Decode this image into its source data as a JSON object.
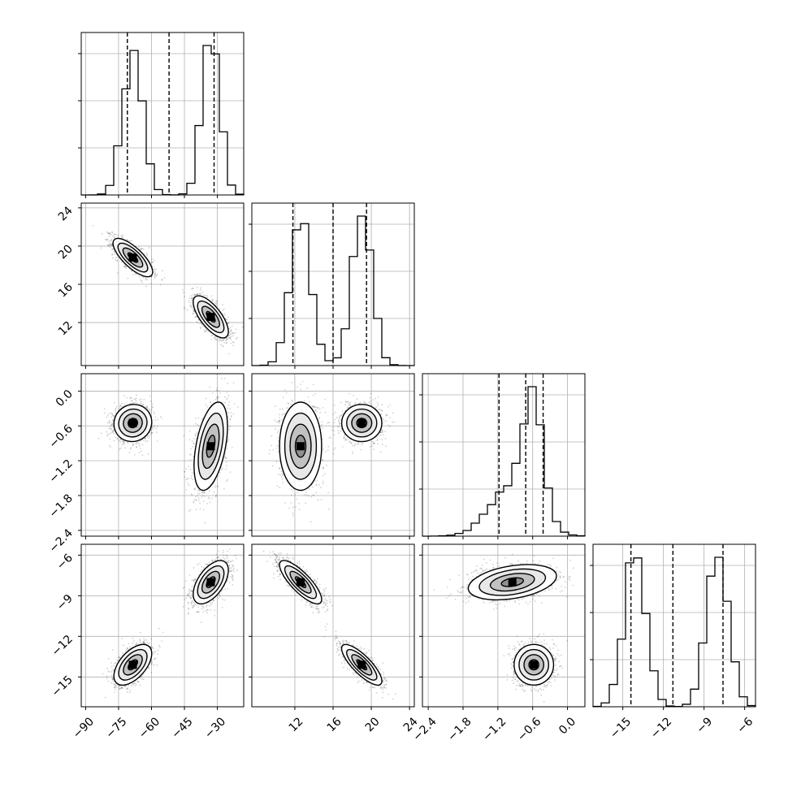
{
  "chart_data": {
    "type": "corner",
    "grid": true,
    "legend": "none",
    "parameters": [
      {
        "range": [
          -92,
          -18
        ],
        "ticks": [
          -90,
          -75,
          -60,
          -45,
          -30
        ],
        "tick_labels": [
          "−90",
          "−75",
          "−60",
          "−45",
          "−30"
        ],
        "quantiles": [
          -71.0,
          -52.0,
          -31.5
        ],
        "modes": [
          {
            "center": -68.5,
            "sd": 4.5,
            "weight": 0.5
          },
          {
            "center": -33.0,
            "sd": 4.0,
            "weight": 0.5
          }
        ],
        "hist_bins": 20
      },
      {
        "range": [
          7.5,
          24.5
        ],
        "ticks": [
          12,
          16,
          20,
          24
        ],
        "tick_labels": [
          "12",
          "16",
          "20",
          "24"
        ],
        "quantiles": [
          11.8,
          16.0,
          19.5
        ],
        "modes": [
          {
            "center": 12.6,
            "sd": 1.1,
            "weight": 0.5
          },
          {
            "center": 19.0,
            "sd": 1.05,
            "weight": 0.5
          }
        ],
        "hist_bins": 20
      },
      {
        "range": [
          -2.5,
          0.3
        ],
        "ticks": [
          -2.4,
          -1.8,
          -1.2,
          -0.6,
          0.0
        ],
        "tick_labels": [
          "−2.4",
          "−1.8",
          "−1.2",
          "−0.6",
          "0.0"
        ],
        "quantiles": [
          -1.18,
          -0.72,
          -0.42
        ],
        "modes": [
          {
            "center": -0.95,
            "sd": 0.38,
            "weight": 0.5
          },
          {
            "center": -0.58,
            "sd": 0.17,
            "weight": 0.5
          }
        ],
        "hist_bins": 20
      },
      {
        "range": [
          -17.2,
          -5.2
        ],
        "ticks": [
          -15,
          -12,
          -9,
          -6
        ],
        "tick_labels": [
          "−15",
          "−12",
          "−9",
          "−6"
        ],
        "quantiles": [
          -14.4,
          -11.3,
          -7.6
        ],
        "modes": [
          {
            "center": -14.1,
            "sd": 0.8,
            "weight": 0.5
          },
          {
            "center": -8.0,
            "sd": 0.8,
            "weight": 0.5
          }
        ],
        "hist_bins": 20
      }
    ],
    "pairs": [
      {
        "row": 1,
        "col": 0,
        "clusters": [
          {
            "x": -68.5,
            "y": 18.8,
            "sx": 4.5,
            "sy": 1.0,
            "rho": -0.75
          },
          {
            "x": -33.0,
            "y": 12.6,
            "sx": 4.0,
            "sy": 1.1,
            "rho": -0.7
          }
        ]
      },
      {
        "row": 2,
        "col": 0,
        "clusters": [
          {
            "x": -68.5,
            "y": -0.55,
            "sx": 4.3,
            "sy": 0.16,
            "rho": 0.05
          },
          {
            "x": -33.0,
            "y": -0.95,
            "sx": 3.8,
            "sy": 0.38,
            "rho": 0.45
          }
        ]
      },
      {
        "row": 2,
        "col": 1,
        "clusters": [
          {
            "x": 12.6,
            "y": -0.95,
            "sx": 1.1,
            "sy": 0.38,
            "rho": 0.0
          },
          {
            "x": 19.0,
            "y": -0.55,
            "sx": 1.05,
            "sy": 0.16,
            "rho": 0.0
          }
        ]
      },
      {
        "row": 3,
        "col": 0,
        "clusters": [
          {
            "x": -68.5,
            "y": -14.1,
            "sx": 4.3,
            "sy": 0.75,
            "rho": 0.55
          },
          {
            "x": -33.0,
            "y": -8.0,
            "sx": 4.0,
            "sy": 0.8,
            "rho": 0.55
          }
        ]
      },
      {
        "row": 3,
        "col": 1,
        "clusters": [
          {
            "x": 12.6,
            "y": -8.0,
            "sx": 1.1,
            "sy": 0.8,
            "rho": -0.8
          },
          {
            "x": 19.0,
            "y": -14.1,
            "sx": 1.05,
            "sy": 0.75,
            "rho": -0.8
          }
        ]
      },
      {
        "row": 3,
        "col": 2,
        "clusters": [
          {
            "x": -0.95,
            "y": -8.0,
            "sx": 0.38,
            "sy": 0.65,
            "rho": 0.35
          },
          {
            "x": -0.58,
            "y": -14.1,
            "sx": 0.17,
            "sy": 0.75,
            "rho": 0.0
          }
        ]
      }
    ],
    "contour_levels_sigma": [
      0.5,
      1.0,
      1.5,
      2.0
    ],
    "colors": {
      "points": "#000000",
      "contour": "#000000",
      "hist": "#000000",
      "quantile": "#000000",
      "grid": "#b0b0b0",
      "density_max": "#000000"
    }
  }
}
